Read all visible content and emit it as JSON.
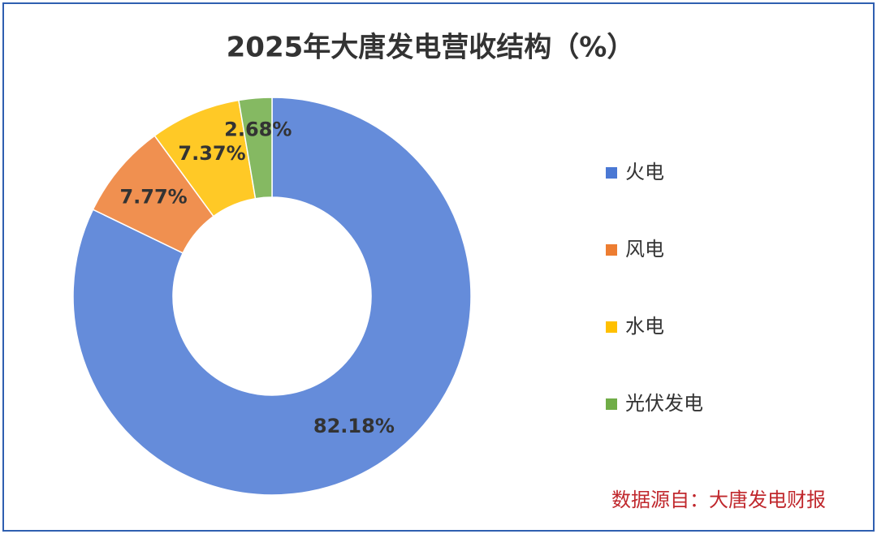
{
  "chart_data": {
    "type": "donut",
    "title": "2025年大唐发电营收结构（%）",
    "categories": [
      "火电",
      "风电",
      "水电",
      "光伏发电"
    ],
    "values": [
      82.18,
      7.77,
      7.37,
      2.68
    ],
    "value_labels": [
      "82.18%",
      "7.77%",
      "7.37%",
      "2.68%"
    ],
    "colors": [
      "#4a78d4",
      "#ed7d31",
      "#ffc000",
      "#70ad47"
    ],
    "legend": "right",
    "source": "数据源自：大唐发电财报"
  }
}
